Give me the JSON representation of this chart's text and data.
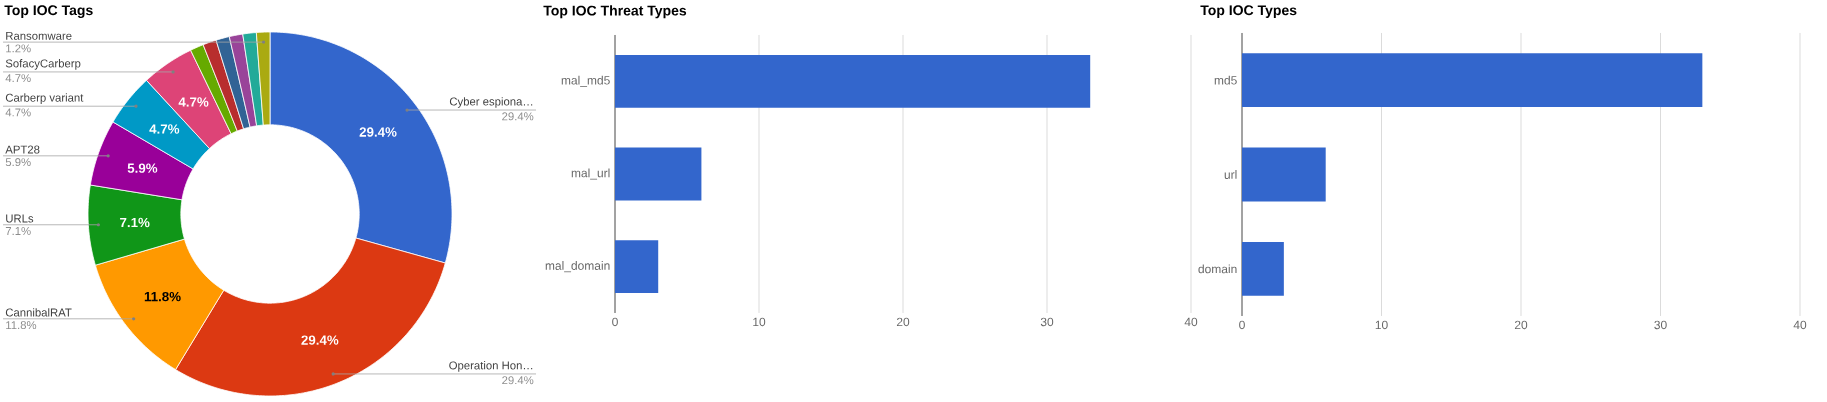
{
  "chart_data": [
    {
      "type": "donut",
      "title": "Top IOC Tags",
      "categories": [
        "Cyber espiona…",
        "Operation Hon…",
        "CannibalRAT",
        "URLs",
        "APT28",
        "Carberp variant",
        "SofacyCarberp",
        null,
        null,
        null,
        null,
        null,
        "Ransomware"
      ],
      "values": [
        29.4,
        29.4,
        11.8,
        7.1,
        5.9,
        4.7,
        4.7,
        1.2,
        1.2,
        1.2,
        1.2,
        1.2,
        1.2
      ],
      "colors": [
        "#3366cc",
        "#dc3912",
        "#ff9900",
        "#109618",
        "#990099",
        "#0099c6",
        "#dd4477",
        "#66aa00",
        "#b82e2e",
        "#316395",
        "#994499",
        "#22aa99",
        "#aaaa11"
      ],
      "value_labels": [
        "29.4%",
        "29.4%",
        "11.8%",
        "7.1%",
        "5.9%",
        "4.7%",
        "4.7%",
        null,
        null,
        null,
        null,
        null,
        "1.2%"
      ]
    },
    {
      "type": "bar",
      "orientation": "horizontal",
      "title": "Top IOC Threat Types",
      "categories": [
        "mal_md5",
        "mal_url",
        "mal_domain"
      ],
      "values": [
        33,
        6,
        3
      ],
      "color": "#3366cc",
      "xlim": [
        0,
        40
      ],
      "xticks": [
        0,
        10,
        20,
        30,
        40
      ],
      "grid": "x"
    },
    {
      "type": "bar",
      "orientation": "horizontal",
      "title": "Top IOC Types",
      "categories": [
        "md5",
        "url",
        "domain"
      ],
      "values": [
        33,
        6,
        3
      ],
      "color": "#3366cc",
      "xlim": [
        0,
        40
      ],
      "xticks": [
        0,
        10,
        20,
        30,
        40
      ],
      "grid": "x"
    }
  ]
}
